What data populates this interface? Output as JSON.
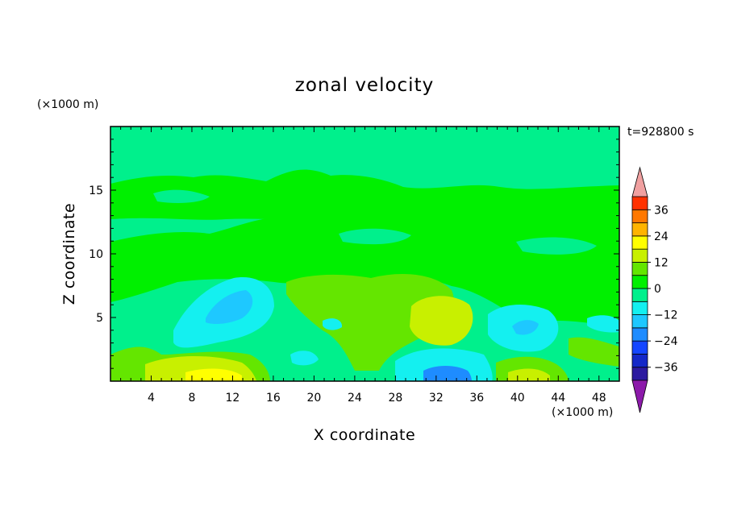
{
  "chart_data": {
    "type": "heatmap",
    "title": "zonal velocity",
    "xlabel": "X coordinate",
    "ylabel": "Z coordinate",
    "x_unit": "(×1000 m)",
    "y_unit": "(×1000 m)",
    "time_label": "t=928800 s",
    "xlim": [
      0,
      50
    ],
    "ylim": [
      0,
      20
    ],
    "x_ticks": [
      "4",
      "8",
      "12",
      "16",
      "20",
      "24",
      "28",
      "32",
      "36",
      "40",
      "44",
      "48"
    ],
    "y_ticks": [
      "5",
      "10",
      "15"
    ],
    "colorbar": {
      "tick_labels": [
        "36",
        "24",
        "12",
        "0",
        "−12",
        "−24",
        "−36"
      ],
      "levels": [
        -42,
        -36,
        -30,
        -24,
        -18,
        -12,
        -6,
        0,
        6,
        12,
        18,
        24,
        30,
        36,
        42
      ],
      "colors": [
        "#5a1a96",
        "#2c1aa0",
        "#1428c8",
        "#1446ff",
        "#1e8cff",
        "#1ec8ff",
        "#14f0f0",
        "#00f08c",
        "#00f000",
        "#64e600",
        "#c8f000",
        "#ffff00",
        "#ffb400",
        "#ff7800",
        "#ff3200",
        "#e61414"
      ],
      "under_color": "#8c1aaa",
      "over_color": "#f0a0a0"
    },
    "background_level_range": [
      -6,
      0
    ],
    "features": [
      {
        "name": "near-zero band",
        "x": [
          0,
          50
        ],
        "z": [
          6.5,
          15
        ],
        "range": [
          0,
          6
        ]
      },
      {
        "name": "weak negative layer",
        "x": [
          0,
          50
        ],
        "z": [
          15,
          20
        ],
        "range": [
          -6,
          0
        ]
      },
      {
        "name": "negative core",
        "x": [
          9,
          12
        ],
        "z": [
          3,
          8
        ],
        "range": [
          -12,
          -6
        ]
      },
      {
        "name": "positive core",
        "x": [
          30,
          34
        ],
        "z": [
          4,
          6
        ],
        "range": [
          6,
          12
        ]
      },
      {
        "name": "surface positive",
        "x": [
          7,
          14
        ],
        "z": [
          0,
          1.5
        ],
        "range": [
          6,
          12
        ]
      },
      {
        "name": "surface negative",
        "x": [
          30,
          35
        ],
        "z": [
          0,
          1
        ],
        "range": [
          -18,
          -12
        ]
      },
      {
        "name": "negative core",
        "x": [
          39,
          43
        ],
        "z": [
          3,
          6
        ],
        "range": [
          -12,
          -6
        ]
      },
      {
        "name": "surface positive",
        "x": [
          38,
          42
        ],
        "z": [
          0,
          1.5
        ],
        "range": [
          6,
          12
        ]
      }
    ]
  }
}
